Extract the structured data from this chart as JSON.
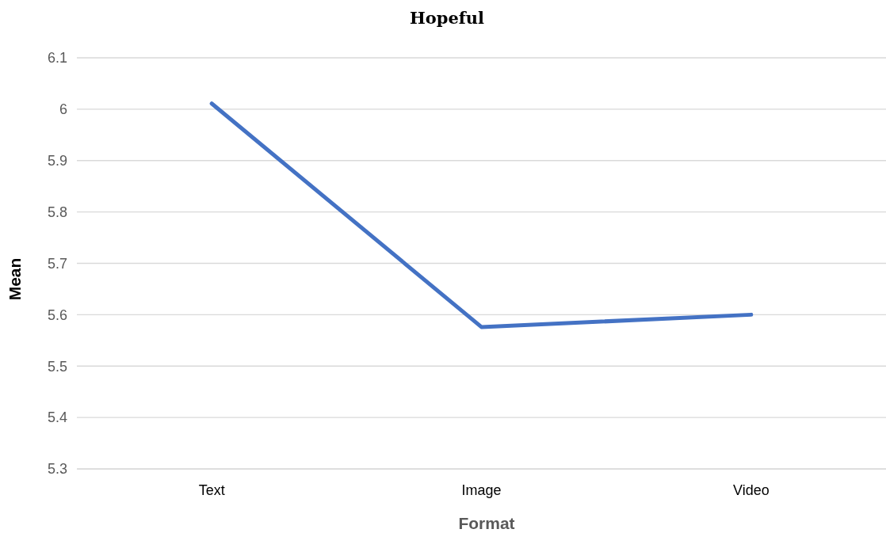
{
  "chart_data": {
    "type": "line",
    "title": "Hopeful",
    "xlabel": "Format",
    "ylabel": "Mean",
    "categories": [
      "Text",
      "Image",
      "Video"
    ],
    "series": [
      {
        "color": "#4472c4",
        "values": [
          6.011,
          5.576,
          5.6
        ]
      }
    ],
    "ylim": [
      5.3,
      6.1
    ],
    "yticks": [
      5.3,
      5.4,
      5.5,
      5.6,
      5.7,
      5.8,
      5.9,
      6,
      6.1
    ],
    "grid": "y",
    "marker": "none",
    "line_style": "solid"
  }
}
